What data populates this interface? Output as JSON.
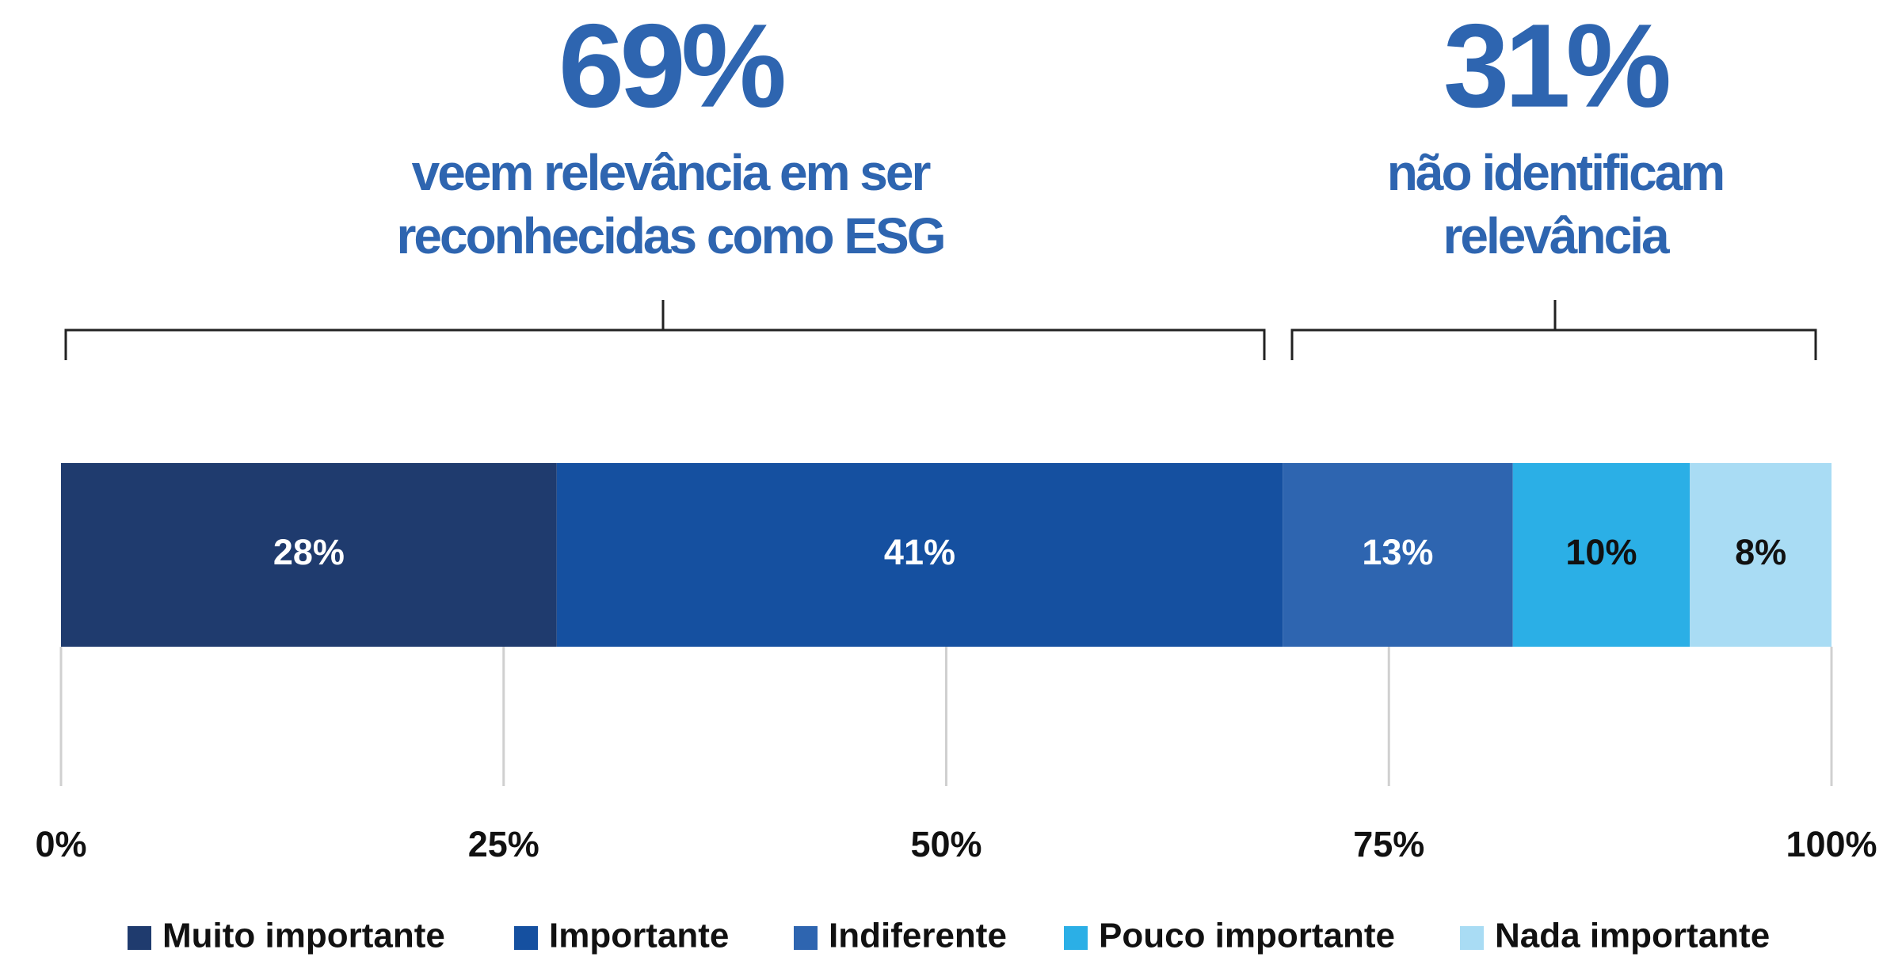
{
  "chart_data": {
    "type": "bar",
    "orientation": "horizontal",
    "stacked": true,
    "annotations": [
      {
        "title": "69%",
        "lines": [
          "veem relevância em ser",
          "reconhecidas como ESG"
        ]
      },
      {
        "title": "31%",
        "lines": [
          "não identificam",
          "relevância"
        ]
      }
    ],
    "categories": [
      null
    ],
    "series": [
      {
        "name": "Muito importante",
        "color": "#1f3b6e",
        "values": [
          28
        ],
        "value_labels": [
          "28%"
        ]
      },
      {
        "name": "Importante",
        "color": "#1550a0",
        "values": [
          41
        ],
        "value_labels": [
          "41%"
        ]
      },
      {
        "name": "Indiferente",
        "color": "#2e65b0",
        "values": [
          13
        ],
        "value_labels": [
          "13%"
        ]
      },
      {
        "name": "Pouco importante",
        "color": "#2bafe6",
        "values": [
          10
        ],
        "value_labels": [
          "10%"
        ]
      },
      {
        "name": "Nada importante",
        "color": "#a9dcf4",
        "values": [
          8
        ],
        "value_labels": [
          "8%"
        ]
      }
    ],
    "xlim": [
      0,
      100
    ],
    "xticks": [
      {
        "value": 0,
        "label": "0%"
      },
      {
        "value": 25,
        "label": "25%"
      },
      {
        "value": 50,
        "label": "50%"
      },
      {
        "value": 75,
        "label": "75%"
      },
      {
        "value": 100,
        "label": "100%"
      }
    ],
    "grid": true,
    "legend": "bottom"
  }
}
